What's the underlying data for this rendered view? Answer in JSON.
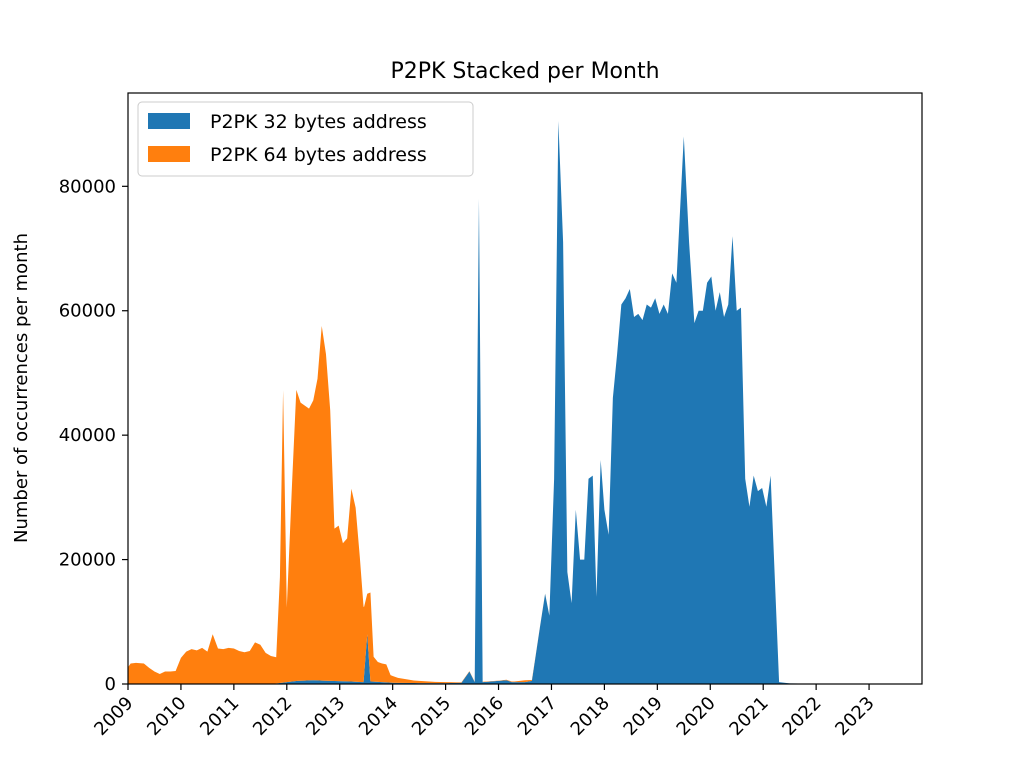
{
  "chart_data": {
    "type": "area",
    "stacked": true,
    "title": "P2PK Stacked per Month",
    "xlabel": "",
    "ylabel": "Number of occurrences per month",
    "xlim": [
      2009.0,
      2024.0
    ],
    "ylim": [
      0,
      95000
    ],
    "grid": false,
    "legend_position": "top-left",
    "x_ticks": [
      2009,
      2010,
      2011,
      2012,
      2013,
      2014,
      2015,
      2016,
      2017,
      2018,
      2019,
      2020,
      2021,
      2022,
      2023
    ],
    "x_tick_labels": [
      "2009",
      "2010",
      "2011",
      "2012",
      "2013",
      "2014",
      "2015",
      "2016",
      "2017",
      "2018",
      "2019",
      "2020",
      "2021",
      "2022",
      "2023"
    ],
    "y_ticks": [
      0,
      20000,
      40000,
      60000,
      80000
    ],
    "y_tick_labels": [
      "0",
      "20000",
      "40000",
      "60000",
      "80000"
    ],
    "series": [
      {
        "name": "P2PK 32 bytes address",
        "color": "#1f77b4",
        "points": [
          [
            2009.0,
            0
          ],
          [
            2011.7,
            0
          ],
          [
            2011.9,
            200
          ],
          [
            2012.2,
            500
          ],
          [
            2012.5,
            600
          ],
          [
            2012.8,
            500
          ],
          [
            2013.2,
            400
          ],
          [
            2013.45,
            300
          ],
          [
            2013.52,
            8000
          ],
          [
            2013.58,
            400
          ],
          [
            2013.8,
            300
          ],
          [
            2014.0,
            200
          ],
          [
            2014.5,
            150
          ],
          [
            2015.0,
            150
          ],
          [
            2015.3,
            200
          ],
          [
            2015.45,
            2000
          ],
          [
            2015.55,
            300
          ],
          [
            2015.63,
            78000
          ],
          [
            2015.7,
            300
          ],
          [
            2015.85,
            400
          ],
          [
            2016.0,
            500
          ],
          [
            2016.15,
            600
          ],
          [
            2016.25,
            300
          ],
          [
            2016.5,
            300
          ],
          [
            2016.63,
            500
          ],
          [
            2016.78,
            9000
          ],
          [
            2016.88,
            14500
          ],
          [
            2016.96,
            11000
          ],
          [
            2017.05,
            33000
          ],
          [
            2017.13,
            90500
          ],
          [
            2017.22,
            71000
          ],
          [
            2017.3,
            18000
          ],
          [
            2017.38,
            13000
          ],
          [
            2017.46,
            28000
          ],
          [
            2017.54,
            20000
          ],
          [
            2017.62,
            20000
          ],
          [
            2017.7,
            33000
          ],
          [
            2017.78,
            33500
          ],
          [
            2017.85,
            14000
          ],
          [
            2017.93,
            36000
          ],
          [
            2018.0,
            28000
          ],
          [
            2018.08,
            24000
          ],
          [
            2018.16,
            46000
          ],
          [
            2018.24,
            53000
          ],
          [
            2018.32,
            61000
          ],
          [
            2018.4,
            62000
          ],
          [
            2018.48,
            63500
          ],
          [
            2018.56,
            59000
          ],
          [
            2018.64,
            59500
          ],
          [
            2018.72,
            58500
          ],
          [
            2018.8,
            61000
          ],
          [
            2018.88,
            60500
          ],
          [
            2018.96,
            62000
          ],
          [
            2019.04,
            59500
          ],
          [
            2019.12,
            61000
          ],
          [
            2019.2,
            59500
          ],
          [
            2019.28,
            66000
          ],
          [
            2019.36,
            64500
          ],
          [
            2019.5,
            88000
          ],
          [
            2019.6,
            71000
          ],
          [
            2019.7,
            58000
          ],
          [
            2019.78,
            60000
          ],
          [
            2019.86,
            60000
          ],
          [
            2019.94,
            64500
          ],
          [
            2020.02,
            65500
          ],
          [
            2020.1,
            60000
          ],
          [
            2020.18,
            63000
          ],
          [
            2020.26,
            59000
          ],
          [
            2020.34,
            61000
          ],
          [
            2020.42,
            72000
          ],
          [
            2020.5,
            60000
          ],
          [
            2020.58,
            60500
          ],
          [
            2020.66,
            33000
          ],
          [
            2020.74,
            28500
          ],
          [
            2020.82,
            33500
          ],
          [
            2020.9,
            31000
          ],
          [
            2020.98,
            31500
          ],
          [
            2021.06,
            28500
          ],
          [
            2021.14,
            33500
          ],
          [
            2021.3,
            300
          ],
          [
            2021.5,
            100
          ],
          [
            2022.0,
            50
          ],
          [
            2023.0,
            50
          ],
          [
            2023.9,
            0
          ]
        ]
      },
      {
        "name": "P2PK 64 bytes address",
        "color": "#ff7f0e",
        "points": [
          [
            2009.0,
            2700
          ],
          [
            2009.05,
            3300
          ],
          [
            2009.15,
            3400
          ],
          [
            2009.3,
            3300
          ],
          [
            2009.4,
            2600
          ],
          [
            2009.5,
            2000
          ],
          [
            2009.6,
            1600
          ],
          [
            2009.7,
            2000
          ],
          [
            2009.8,
            2000
          ],
          [
            2009.9,
            2100
          ],
          [
            2010.0,
            4200
          ],
          [
            2010.1,
            5200
          ],
          [
            2010.2,
            5600
          ],
          [
            2010.3,
            5400
          ],
          [
            2010.4,
            5800
          ],
          [
            2010.5,
            5200
          ],
          [
            2010.6,
            8000
          ],
          [
            2010.7,
            5700
          ],
          [
            2010.8,
            5600
          ],
          [
            2010.9,
            5800
          ],
          [
            2011.0,
            5700
          ],
          [
            2011.1,
            5300
          ],
          [
            2011.2,
            5100
          ],
          [
            2011.3,
            5300
          ],
          [
            2011.4,
            6700
          ],
          [
            2011.5,
            6300
          ],
          [
            2011.6,
            5000
          ],
          [
            2011.7,
            4500
          ],
          [
            2011.8,
            4200
          ],
          [
            2011.87,
            17000
          ],
          [
            2011.93,
            47000
          ],
          [
            2012.0,
            12000
          ],
          [
            2012.1,
            32000
          ],
          [
            2012.18,
            46800
          ],
          [
            2012.26,
            44700
          ],
          [
            2012.34,
            44200
          ],
          [
            2012.42,
            43700
          ],
          [
            2012.5,
            45000
          ],
          [
            2012.58,
            48500
          ],
          [
            2012.66,
            57000
          ],
          [
            2012.74,
            52500
          ],
          [
            2012.82,
            43500
          ],
          [
            2012.9,
            24500
          ],
          [
            2012.98,
            25000
          ],
          [
            2013.06,
            22200
          ],
          [
            2013.14,
            23000
          ],
          [
            2013.22,
            31000
          ],
          [
            2013.3,
            28000
          ],
          [
            2013.38,
            20000
          ],
          [
            2013.46,
            11000
          ],
          [
            2013.52,
            6500
          ],
          [
            2013.58,
            14300
          ],
          [
            2013.64,
            4000
          ],
          [
            2013.72,
            3200
          ],
          [
            2013.8,
            3000
          ],
          [
            2013.88,
            2900
          ],
          [
            2013.96,
            1200
          ],
          [
            2014.1,
            800
          ],
          [
            2014.4,
            400
          ],
          [
            2014.8,
            200
          ],
          [
            2015.2,
            100
          ],
          [
            2015.8,
            50
          ],
          [
            2016.0,
            50
          ],
          [
            2016.3,
            100
          ],
          [
            2016.5,
            300
          ],
          [
            2016.7,
            50
          ],
          [
            2017.0,
            0
          ],
          [
            2023.9,
            0
          ]
        ]
      }
    ]
  }
}
